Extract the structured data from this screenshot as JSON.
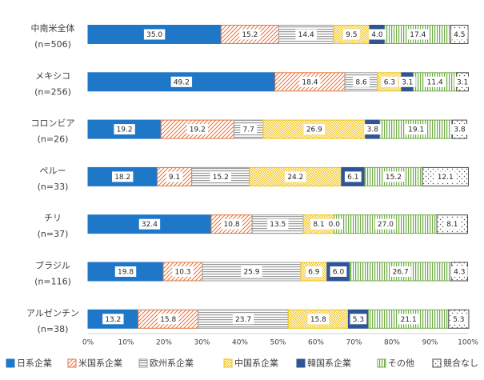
{
  "chart_data": {
    "type": "bar",
    "orientation": "horizontal",
    "stacked": true,
    "percent": true,
    "categories": [
      [
        "中南米全体",
        "(n=506)"
      ],
      [
        "メキシコ",
        "(n=256)"
      ],
      [
        "コロンビア",
        "(n=26)"
      ],
      [
        "ペルー",
        "(n=33)"
      ],
      [
        "チリ",
        "(n=37)"
      ],
      [
        "ブラジル",
        "(n=116)"
      ],
      [
        "アルゼンチン",
        "(n=38)"
      ]
    ],
    "series": [
      {
        "name": "日系企業",
        "color": "#1f77c8",
        "pattern": "solid",
        "values": [
          35.0,
          49.2,
          19.2,
          18.2,
          32.4,
          19.8,
          13.2
        ],
        "labels": [
          "35.0",
          "49.2",
          "19.2",
          "18.2",
          "32.4",
          "19.8",
          "13.2"
        ]
      },
      {
        "name": "米国系企業",
        "color": "#e8743b",
        "pattern": "diagonal",
        "values": [
          15.2,
          18.4,
          19.2,
          9.1,
          10.8,
          10.3,
          15.8
        ],
        "labels": [
          "15.2",
          "18.4",
          "19.2",
          "9.1",
          "10.8",
          "10.3",
          "15.8"
        ]
      },
      {
        "name": "欧州系企業",
        "color": "#9a9a9a",
        "pattern": "horizontal",
        "values": [
          14.4,
          8.6,
          7.7,
          15.2,
          13.5,
          25.9,
          23.7
        ],
        "labels": [
          "14.4",
          "8.6",
          "7.7",
          "15.2",
          "13.5",
          "25.9",
          "23.7"
        ]
      },
      {
        "name": "中国系企業",
        "color": "#f2c314",
        "pattern": "dots-dense",
        "values": [
          9.5,
          6.3,
          26.9,
          24.2,
          8.1,
          6.9,
          15.8
        ],
        "labels": [
          "9.5",
          "6.3",
          "26.9",
          "24.2",
          "8.1",
          "6.9",
          "15.8"
        ]
      },
      {
        "name": "韓国系企業",
        "color": "#2f5597",
        "pattern": "solid",
        "values": [
          4.0,
          3.1,
          3.8,
          6.1,
          0.0,
          6.0,
          5.3
        ],
        "labels": [
          "4.0",
          "3.1",
          "3.8",
          "6.1",
          "0.0",
          "6.0",
          "5.3"
        ]
      },
      {
        "name": "その他",
        "color": "#70ad47",
        "pattern": "vertical",
        "values": [
          17.4,
          11.4,
          19.1,
          15.2,
          27.0,
          26.7,
          21.1
        ],
        "labels": [
          "17.4",
          "11.4",
          "19.1",
          "15.2",
          "27.0",
          "26.7",
          "21.1"
        ]
      },
      {
        "name": "競合なし",
        "color": "#4a4a4a",
        "pattern": "dots-sparse",
        "values": [
          4.5,
          3.1,
          3.8,
          12.1,
          8.1,
          4.3,
          5.3
        ],
        "labels": [
          "4.5",
          "3.1",
          "3.8",
          "12.1",
          "8.1",
          "4.3",
          "5.3"
        ]
      }
    ],
    "xlim": [
      0,
      100
    ],
    "xticks": [
      "0%",
      "10%",
      "20%",
      "30%",
      "40%",
      "50%",
      "60%",
      "70%",
      "80%",
      "90%",
      "100%"
    ],
    "grid": false,
    "legend_position": "bottom"
  }
}
